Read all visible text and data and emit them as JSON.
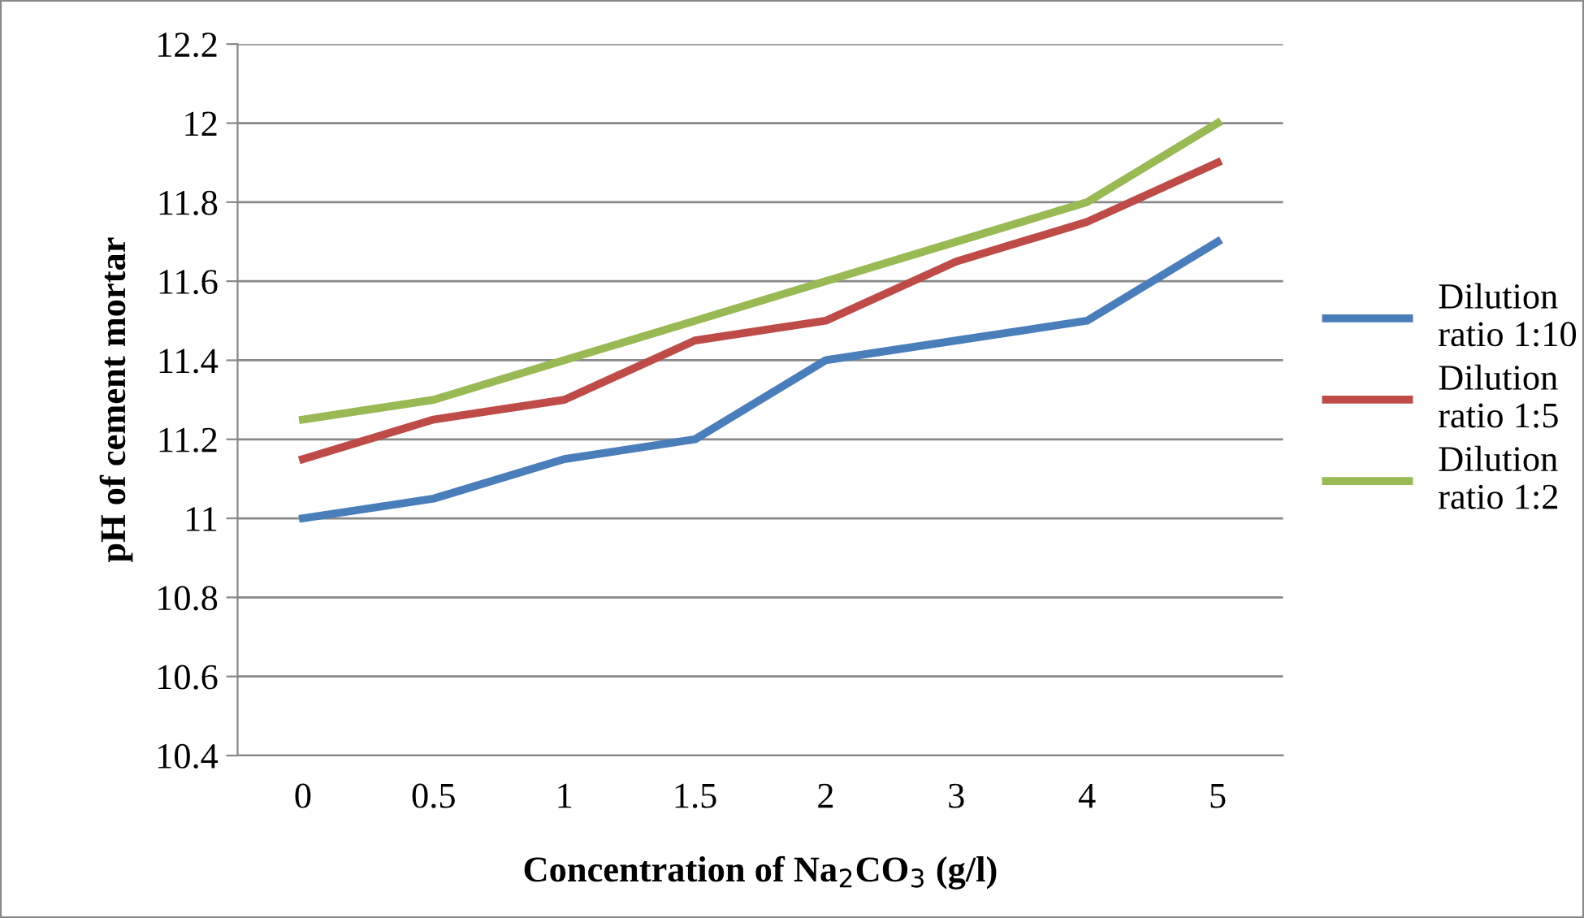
{
  "chart_data": {
    "type": "line",
    "xlabel": "Concentration of Na$_{2}$CO$_{3}$ (g/l)",
    "ylabel": "pH of cement mortar",
    "categories": [
      "0",
      "0.5",
      "1",
      "1.5",
      "2",
      "3",
      "4",
      "5"
    ],
    "series": [
      {
        "name": "Dilution\nratio 1:10",
        "color": "#4a7ebb",
        "values": [
          11.0,
          11.05,
          11.15,
          11.2,
          11.4,
          11.45,
          11.5,
          11.7
        ]
      },
      {
        "name": "Dilution\nratio 1:5",
        "color": "#be4b48",
        "values": [
          11.15,
          11.25,
          11.3,
          11.45,
          11.5,
          11.65,
          11.75,
          11.9
        ]
      },
      {
        "name": "Dilution\nratio 1:2",
        "color": "#98b954",
        "values": [
          11.25,
          11.3,
          11.4,
          11.5,
          11.6,
          11.7,
          11.8,
          12.0
        ]
      }
    ],
    "ylim": [
      10.4,
      12.2
    ],
    "yticks": [
      10.4,
      10.6,
      10.8,
      11,
      11.2,
      11.4,
      11.6,
      11.8,
      12,
      12.2
    ],
    "grid": "y",
    "legend": "right",
    "marker": "none",
    "line_style": "solid"
  }
}
